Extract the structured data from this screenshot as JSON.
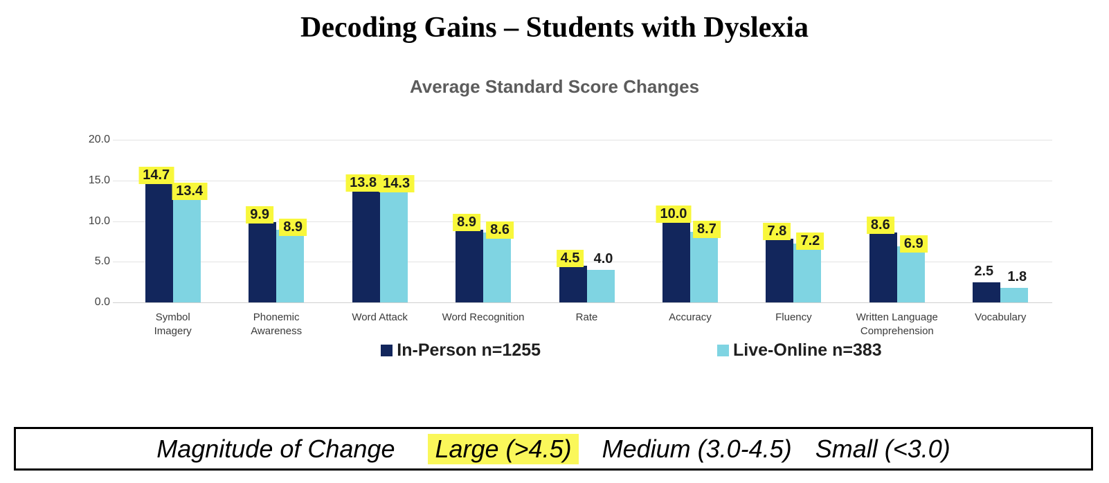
{
  "title": "Decoding Gains – Students with Dyslexia",
  "subtitle": "Average Standard Score Changes",
  "colors": {
    "navy": "#12265C",
    "cyan": "#7FD4E2",
    "label_highlight": "#F8F73B",
    "magnitude_highlight": "#FAF75A",
    "gridline": "#E3E3E3",
    "axis_text": "#404040"
  },
  "chart_data": {
    "type": "bar",
    "title": "Average Standard Score Changes",
    "categories": [
      "Symbol\nImagery",
      "Phonemic\nAwareness",
      "Word Attack",
      "Word Recognition",
      "Rate",
      "Accuracy",
      "Fluency",
      "Written Language\nComprehension",
      "Vocabulary"
    ],
    "series": [
      {
        "name": "In-Person n=1255",
        "values": [
          14.7,
          9.9,
          13.8,
          8.9,
          4.5,
          10.0,
          7.8,
          8.6,
          2.5
        ]
      },
      {
        "name": "Live-Online n=383",
        "values": [
          13.4,
          8.9,
          14.3,
          8.6,
          4.0,
          8.7,
          7.2,
          6.9,
          1.8
        ]
      }
    ],
    "highlighted": [
      [
        true,
        true,
        true,
        true,
        true,
        true,
        true,
        true,
        false
      ],
      [
        true,
        true,
        true,
        true,
        false,
        true,
        true,
        true,
        false
      ]
    ],
    "ylim": [
      0,
      20
    ],
    "yticks": [
      "0.0",
      "5.0",
      "10.0",
      "15.0",
      "20.0"
    ],
    "grid": true,
    "legend_position": "bottom",
    "xlabel": "",
    "ylabel": ""
  },
  "legend": [
    {
      "label": "In-Person n=1255",
      "color": "#12265C"
    },
    {
      "label": "Live-Online n=383",
      "color": "#7FD4E2"
    }
  ],
  "magnitude": {
    "label": "Magnitude of Change",
    "levels": [
      {
        "text": "Large (>4.5)",
        "highlight": true
      },
      {
        "text": "Medium (3.0-4.5)",
        "highlight": false
      },
      {
        "text": "Small (<3.0)",
        "highlight": false
      }
    ]
  }
}
